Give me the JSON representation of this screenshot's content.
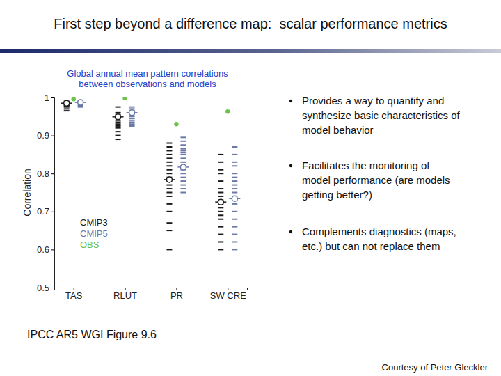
{
  "header": {
    "title": "First step beyond a difference map:  scalar performance metrics"
  },
  "chart_data": {
    "type": "strip",
    "title": [
      "Global annual mean pattern correlations",
      "between observations and models"
    ],
    "ylabel": "Correlation",
    "categories": [
      "TAS",
      "RLUT",
      "PR",
      "SW CRE"
    ],
    "ylim": [
      0.5,
      1
    ],
    "yticks": [
      0.5,
      0.6,
      0.7,
      0.8,
      0.9,
      1
    ],
    "legend": "lower left",
    "series": [
      {
        "name": "CMIP3",
        "color": "#1a1a1a",
        "marker": "dash",
        "values": [
          [
            0.99,
            0.988,
            0.985,
            0.982,
            0.98,
            0.978,
            0.975,
            0.97,
            0.965
          ],
          [
            0.975,
            0.96,
            0.955,
            0.95,
            0.945,
            0.94,
            0.935,
            0.93,
            0.925,
            0.92,
            0.91,
            0.9,
            0.89
          ],
          [
            0.88,
            0.87,
            0.86,
            0.85,
            0.84,
            0.83,
            0.82,
            0.81,
            0.8,
            0.79,
            0.78,
            0.77,
            0.76,
            0.75,
            0.74,
            0.72,
            0.7,
            0.67,
            0.65,
            0.6
          ],
          [
            0.85,
            0.83,
            0.81,
            0.8,
            0.78,
            0.76,
            0.75,
            0.74,
            0.73,
            0.72,
            0.71,
            0.7,
            0.69,
            0.68,
            0.66,
            0.64,
            0.62,
            0.6
          ]
        ],
        "mean": [
          0.985,
          0.949,
          0.784,
          0.725
        ]
      },
      {
        "name": "CMIP5",
        "color": "#6a78a8",
        "marker": "dash",
        "values": [
          [
            0.992,
            0.99,
            0.988,
            0.985,
            0.983,
            0.98,
            0.978,
            0.975
          ],
          [
            0.975,
            0.97,
            0.965,
            0.96,
            0.955,
            0.95,
            0.945,
            0.94,
            0.935,
            0.93,
            0.925
          ],
          [
            0.895,
            0.885,
            0.875,
            0.865,
            0.86,
            0.855,
            0.85,
            0.84,
            0.83,
            0.82,
            0.81,
            0.8,
            0.79,
            0.78,
            0.77,
            0.76,
            0.75
          ],
          [
            0.87,
            0.85,
            0.83,
            0.82,
            0.8,
            0.79,
            0.78,
            0.77,
            0.76,
            0.75,
            0.74,
            0.73,
            0.72,
            0.7,
            0.68,
            0.66,
            0.64,
            0.62,
            0.6
          ]
        ],
        "mean": [
          0.987,
          0.96,
          0.817,
          0.734
        ]
      },
      {
        "name": "OBS",
        "color": "#6cc24a",
        "marker": "dot",
        "values": [
          0.996,
          0.998,
          0.93,
          0.963
        ]
      }
    ]
  },
  "bullets": [
    [
      "Provides a way to quantify and",
      "synthesize basic characteristics of",
      "model behavior"
    ],
    [
      "Facilitates the monitoring of",
      "model performance (are models",
      "getting better?)"
    ],
    [
      "Complements diagnostics (maps,",
      "etc.) but can not replace them"
    ]
  ],
  "caption": "IPCC AR5 WGI Figure 9.6",
  "credit": "Courtesy of Peter Gleckler"
}
